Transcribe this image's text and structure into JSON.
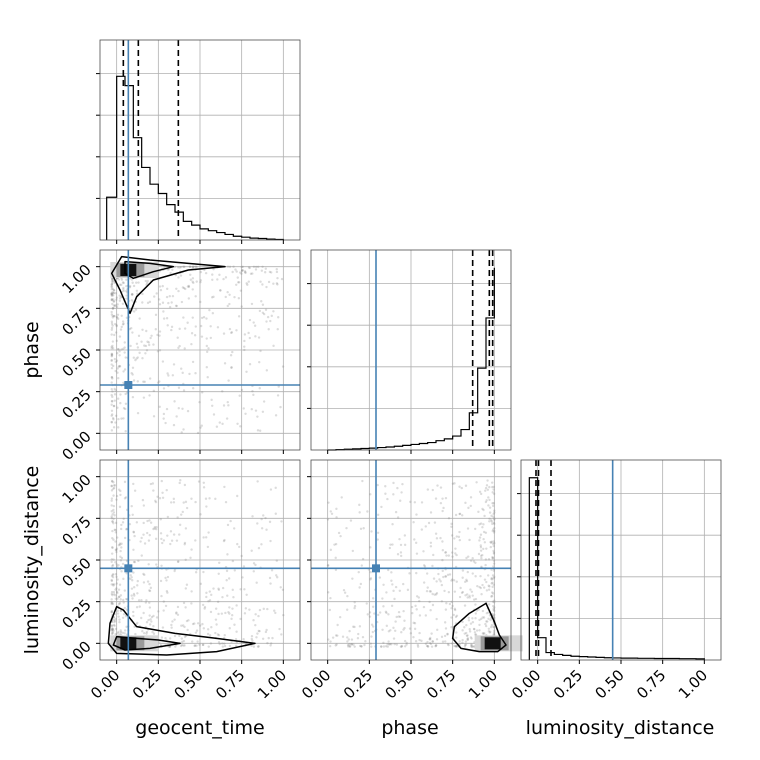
{
  "chart_data": {
    "type": "corner",
    "parameters": [
      "geocent_time",
      "phase",
      "luminosity_distance"
    ],
    "xlim": [
      -0.1,
      1.1
    ],
    "tick_labels": [
      "0.00",
      "0.25",
      "0.50",
      "0.75",
      "1.00"
    ],
    "tick_values": [
      0,
      0.25,
      0.5,
      0.75,
      1.0
    ],
    "grid": true,
    "colors": {
      "truth": "#4682b4",
      "hist": "#000000",
      "quantile": "#000000",
      "samples": "#808080"
    },
    "truths": {
      "geocent_time": 0.07,
      "phase": 0.29,
      "luminosity_distance": 0.45
    },
    "quantiles": {
      "geocent_time": [
        0.04,
        0.13,
        0.37
      ],
      "phase": [
        0.87,
        0.97,
        0.99
      ],
      "luminosity_distance": [
        -0.01,
        0.005,
        0.08
      ]
    },
    "marginals": [
      {
        "parameter": "geocent_time",
        "bin_edges": [
          -0.06,
          0.0,
          0.05,
          0.1,
          0.15,
          0.2,
          0.25,
          0.3,
          0.35,
          0.4,
          0.45,
          0.5,
          0.55,
          0.6,
          0.65,
          0.7,
          0.75,
          0.8,
          0.85,
          0.9,
          0.95,
          1.0
        ],
        "counts": [
          0.23,
          0.88,
          0.83,
          0.55,
          0.39,
          0.3,
          0.25,
          0.19,
          0.15,
          0.1,
          0.08,
          0.06,
          0.05,
          0.04,
          0.03,
          0.02,
          0.015,
          0.01,
          0.008,
          0.005,
          0.003
        ]
      },
      {
        "parameter": "phase",
        "bin_edges": [
          0.0,
          0.05,
          0.1,
          0.15,
          0.2,
          0.25,
          0.3,
          0.35,
          0.4,
          0.45,
          0.5,
          0.55,
          0.6,
          0.65,
          0.7,
          0.75,
          0.8,
          0.85,
          0.9,
          0.95,
          1.0
        ],
        "counts": [
          0.0,
          0.002,
          0.004,
          0.006,
          0.008,
          0.01,
          0.013,
          0.016,
          0.02,
          0.025,
          0.03,
          0.035,
          0.04,
          0.05,
          0.06,
          0.075,
          0.11,
          0.2,
          0.44,
          0.71,
          0.98
        ]
      },
      {
        "parameter": "luminosity_distance",
        "bin_edges": [
          -0.05,
          0.0,
          0.05,
          0.1,
          0.15,
          0.2,
          0.25,
          0.3,
          0.35,
          0.4,
          0.45,
          0.5,
          0.55,
          0.6,
          0.65,
          0.7,
          0.75,
          0.8,
          0.85,
          0.9,
          0.95,
          1.0
        ],
        "counts": [
          0.98,
          0.12,
          0.04,
          0.03,
          0.025,
          0.02,
          0.018,
          0.016,
          0.014,
          0.012,
          0.011,
          0.01,
          0.01,
          0.009,
          0.009,
          0.008,
          0.008,
          0.008,
          0.007,
          0.007,
          0.006
        ]
      }
    ],
    "joint": [
      {
        "x": "geocent_time",
        "y": "phase",
        "density_peak": [
          0.07,
          0.98
        ],
        "contours": [
          [
            [
              0.03,
              1.06
            ],
            [
              0.2,
              1.04
            ],
            [
              0.43,
              1.02
            ],
            [
              0.65,
              1.0
            ],
            [
              0.43,
              0.98
            ],
            [
              0.22,
              0.92
            ],
            [
              0.12,
              0.82
            ],
            [
              0.08,
              0.72
            ],
            [
              0.02,
              0.86
            ],
            [
              -0.03,
              0.96
            ],
            [
              0.03,
              1.06
            ]
          ],
          [
            [
              0.05,
              1.03
            ],
            [
              0.2,
              1.02
            ],
            [
              0.34,
              1.0
            ],
            [
              0.22,
              0.97
            ],
            [
              0.1,
              0.93
            ],
            [
              0.05,
              0.96
            ],
            [
              0.05,
              1.03
            ]
          ]
        ]
      },
      {
        "x": "geocent_time",
        "y": "luminosity_distance",
        "density_peak": [
          0.07,
          0.0
        ],
        "contours": [
          [
            [
              0.0,
              0.22
            ],
            [
              0.04,
              0.2
            ],
            [
              0.12,
              0.1
            ],
            [
              0.35,
              0.06
            ],
            [
              0.6,
              0.03
            ],
            [
              0.83,
              0.0
            ],
            [
              0.6,
              -0.05
            ],
            [
              0.3,
              -0.07
            ],
            [
              0.0,
              -0.06
            ],
            [
              -0.05,
              0.0
            ],
            [
              -0.04,
              0.12
            ],
            [
              0.0,
              0.22
            ]
          ],
          [
            [
              0.0,
              0.04
            ],
            [
              0.12,
              0.03
            ],
            [
              0.25,
              0.02
            ],
            [
              0.38,
              0.0
            ],
            [
              0.2,
              -0.03
            ],
            [
              0.05,
              -0.04
            ],
            [
              -0.02,
              -0.01
            ],
            [
              0.0,
              0.04
            ]
          ]
        ]
      },
      {
        "x": "phase",
        "y": "luminosity_distance",
        "density_peak": [
          0.99,
          0.0
        ],
        "contours": [
          [
            [
              0.95,
              0.24
            ],
            [
              0.85,
              0.18
            ],
            [
              0.76,
              0.1
            ],
            [
              0.75,
              0.03
            ],
            [
              0.8,
              -0.03
            ],
            [
              0.91,
              -0.05
            ],
            [
              1.02,
              -0.05
            ],
            [
              1.07,
              -0.01
            ],
            [
              1.03,
              0.05
            ],
            [
              1.0,
              0.13
            ],
            [
              0.95,
              0.24
            ]
          ]
        ]
      }
    ]
  }
}
